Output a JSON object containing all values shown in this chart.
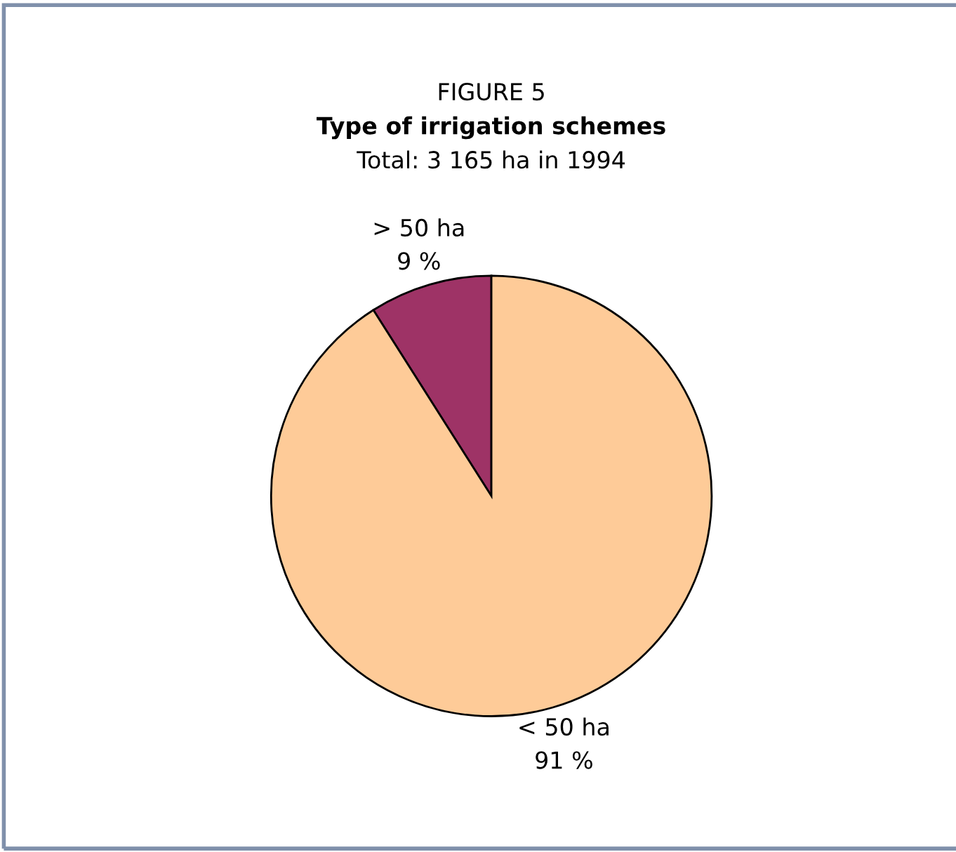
{
  "chart_data": {
    "type": "pie",
    "title": "Type of irrigation schemes",
    "subtitle": "Total: 3 165 ha in 1994",
    "annotations": [
      "FIGURE 5"
    ],
    "categories": [
      "> 50 ha",
      "< 50 ha"
    ],
    "values": [
      9,
      91
    ],
    "value_labels": [
      "9 %",
      "91 %"
    ],
    "colors": [
      "#9e3366",
      "#fecb98"
    ]
  }
}
